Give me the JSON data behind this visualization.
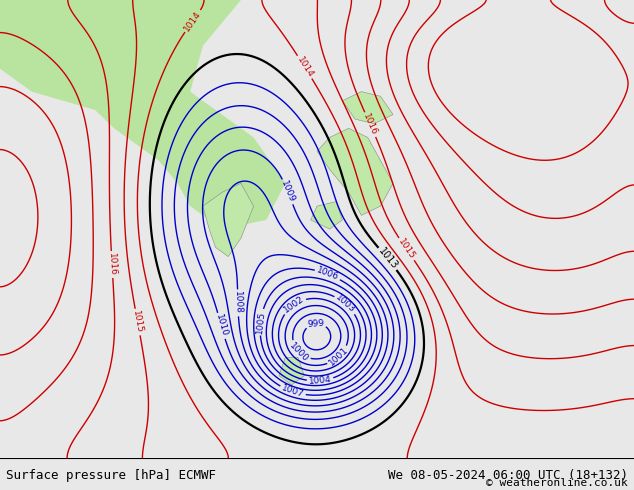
{
  "title_left": "Surface pressure [hPa] ECMWF",
  "title_right": "We 08-05-2024 06:00 UTC (18+132)",
  "copyright": "© weatheronline.co.uk",
  "figsize": [
    6.34,
    4.9
  ],
  "dpi": 100,
  "bg_color": "#e8e8e8",
  "land_color_west": "#b8e4a0",
  "land_color_mid": "#c8eab0",
  "sea_color": "#d8d8d8",
  "bottom_bar_color": "#f0f0f0",
  "bottom_bar_height": 0.065,
  "text_color": "#000000",
  "font_size_bottom": 9,
  "isobar_colors": {
    "below_1013": "#0000cc",
    "at_1013": "#000000",
    "above_1013": "#cc0000"
  },
  "pressure_min": 998,
  "pressure_max": 1020,
  "pressure_step": 1
}
